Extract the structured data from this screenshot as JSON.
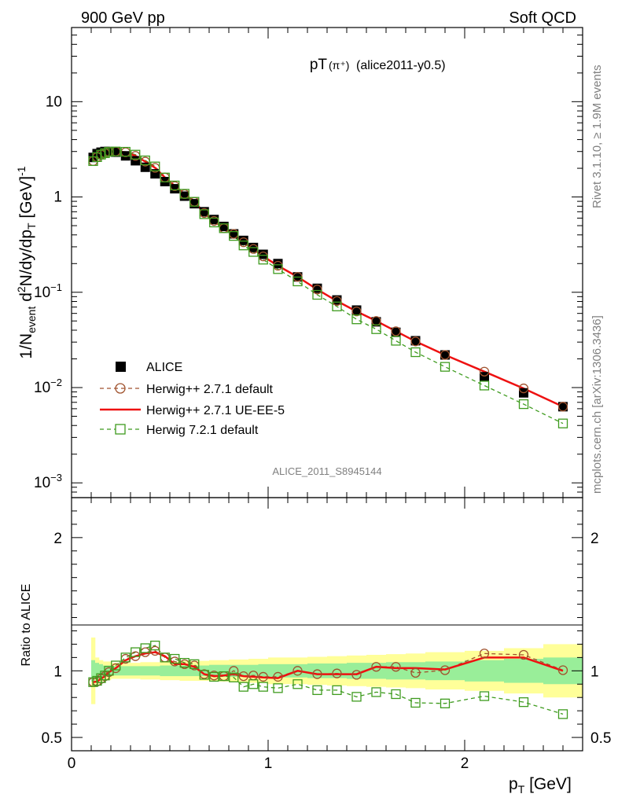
{
  "header": {
    "left": "900 GeV pp",
    "right": "Soft QCD",
    "side_top": "Rivet 3.1.10, ≥ 1.9M events",
    "side_bottom": "mcplots.cern.ch [arXiv:1306.3436]"
  },
  "chart_data": [
    {
      "type": "line",
      "title_main": "pT",
      "title_sub": "(π⁺)",
      "title_tail": "(alice2011-y0.5)",
      "watermark": "ALICE_2011_S8945144",
      "ylabel": "1/N_event d²N/dy/dp_T [GeV]⁻¹",
      "yscale": "log",
      "ylim": [
        0.0007,
        60
      ],
      "xlim": [
        0,
        2.6
      ],
      "ytick_labels": [
        {
          "v": 10,
          "b": "10",
          "e": ""
        },
        {
          "v": 1,
          "b": "1",
          "e": ""
        },
        {
          "v": 0.1,
          "b": "10",
          "e": "−1"
        },
        {
          "v": 0.01,
          "b": "10",
          "e": "−2"
        },
        {
          "v": 0.001,
          "b": "10",
          "e": "−3"
        }
      ],
      "legend": {
        "position": "lower-left",
        "entries": [
          "ALICE",
          "Herwig++ 2.7.1 default",
          "Herwig++ 2.7.1 UE-EE-5",
          "Herwig 7.2.1 default"
        ]
      },
      "x": [
        0.11,
        0.13,
        0.15,
        0.17,
        0.19,
        0.225,
        0.275,
        0.325,
        0.375,
        0.425,
        0.475,
        0.525,
        0.575,
        0.625,
        0.675,
        0.725,
        0.775,
        0.825,
        0.875,
        0.925,
        0.975,
        1.05,
        1.15,
        1.25,
        1.35,
        1.45,
        1.55,
        1.65,
        1.75,
        1.9,
        2.1,
        2.3,
        2.5
      ],
      "series": [
        {
          "name": "ALICE",
          "values": [
            2.6,
            2.85,
            2.95,
            3.0,
            3.0,
            2.95,
            2.7,
            2.4,
            2.05,
            1.75,
            1.45,
            1.22,
            1.02,
            0.85,
            0.7,
            0.58,
            0.49,
            0.41,
            0.35,
            0.295,
            0.25,
            0.2,
            0.145,
            0.11,
            0.083,
            0.065,
            0.049,
            0.038,
            0.031,
            0.022,
            0.013,
            0.0088,
            0.0063
          ]
        },
        {
          "name": "Herwig++ 2.7.1 default",
          "values": [
            2.38,
            2.62,
            2.78,
            2.88,
            2.98,
            3.0,
            2.95,
            2.7,
            2.35,
            2.02,
            1.6,
            1.3,
            1.07,
            0.89,
            0.68,
            0.56,
            0.47,
            0.41,
            0.335,
            0.285,
            0.238,
            0.19,
            0.145,
            0.107,
            0.081,
            0.063,
            0.05,
            0.039,
            0.0305,
            0.022,
            0.0147,
            0.0098,
            0.0063
          ]
        },
        {
          "name": "Herwig++ 2.7.1 UE-EE-5",
          "values": [
            2.38,
            2.62,
            2.78,
            2.88,
            2.98,
            3.0,
            2.95,
            2.7,
            2.35,
            2.02,
            1.6,
            1.3,
            1.07,
            0.89,
            0.68,
            0.56,
            0.47,
            0.41,
            0.335,
            0.285,
            0.238,
            0.19,
            0.145,
            0.107,
            0.081,
            0.063,
            0.05,
            0.039,
            0.0305,
            0.022,
            0.0147,
            0.0098,
            0.0063
          ]
        },
        {
          "name": "Herwig 7.2.1 default",
          "values": [
            2.38,
            2.62,
            2.78,
            2.88,
            2.98,
            3.0,
            2.98,
            2.78,
            2.42,
            2.09,
            1.6,
            1.32,
            1.08,
            0.89,
            0.66,
            0.54,
            0.47,
            0.39,
            0.31,
            0.265,
            0.22,
            0.175,
            0.13,
            0.094,
            0.071,
            0.052,
            0.041,
            0.031,
            0.0235,
            0.0165,
            0.0105,
            0.0067,
            0.0042
          ]
        }
      ]
    },
    {
      "type": "line",
      "ylabel": "Ratio to ALICE",
      "xlabel": "p_T [GeV]",
      "ylim": [
        0.4,
        2.3
      ],
      "xlim": [
        0,
        2.6
      ],
      "ytick_labels": [
        "2",
        "1",
        "0.5"
      ],
      "xtick_labels": [
        "0",
        "1",
        "2"
      ],
      "x": [
        0.11,
        0.13,
        0.15,
        0.17,
        0.19,
        0.225,
        0.275,
        0.325,
        0.375,
        0.425,
        0.475,
        0.525,
        0.575,
        0.625,
        0.675,
        0.725,
        0.775,
        0.825,
        0.875,
        0.925,
        0.975,
        1.05,
        1.15,
        1.25,
        1.35,
        1.45,
        1.55,
        1.65,
        1.75,
        1.9,
        2.1,
        2.3,
        2.5
      ],
      "band_x_edges": [
        0.1,
        0.12,
        0.14,
        0.16,
        0.18,
        0.2,
        0.25,
        0.3,
        0.35,
        0.4,
        0.45,
        0.5,
        0.55,
        0.6,
        0.65,
        0.7,
        0.75,
        0.8,
        0.85,
        0.9,
        0.95,
        1.0,
        1.1,
        1.2,
        1.3,
        1.4,
        1.5,
        1.6,
        1.7,
        1.8,
        2.0,
        2.2,
        2.4,
        2.6
      ],
      "band_stat_halfwidth": [
        0.08,
        0.06,
        0.05,
        0.04,
        0.04,
        0.035,
        0.035,
        0.035,
        0.035,
        0.035,
        0.04,
        0.04,
        0.04,
        0.04,
        0.04,
        0.045,
        0.045,
        0.045,
        0.045,
        0.045,
        0.05,
        0.05,
        0.05,
        0.055,
        0.055,
        0.06,
        0.06,
        0.065,
        0.065,
        0.07,
        0.08,
        0.09,
        0.1
      ],
      "band_total_halfwidth": [
        0.25,
        0.1,
        0.08,
        0.07,
        0.07,
        0.06,
        0.06,
        0.06,
        0.065,
        0.065,
        0.07,
        0.07,
        0.075,
        0.075,
        0.075,
        0.08,
        0.08,
        0.085,
        0.085,
        0.09,
        0.09,
        0.1,
        0.1,
        0.105,
        0.11,
        0.115,
        0.12,
        0.125,
        0.13,
        0.14,
        0.15,
        0.17,
        0.2
      ],
      "series": [
        {
          "name": "Herwig++ 2.7.1 default",
          "values": [
            0.915,
            0.92,
            0.94,
            0.96,
            0.99,
            1.02,
            1.09,
            1.11,
            1.14,
            1.15,
            1.1,
            1.07,
            1.05,
            1.04,
            0.975,
            0.965,
            0.96,
            1.0,
            0.96,
            0.965,
            0.955,
            0.955,
            1.0,
            0.975,
            0.98,
            0.97,
            1.03,
            1.03,
            0.985,
            1.005,
            1.13,
            1.12,
            1.005
          ]
        },
        {
          "name": "Herwig++ 2.7.1 UE-EE-5",
          "values": [
            0.915,
            0.92,
            0.94,
            0.96,
            0.99,
            1.02,
            1.08,
            1.11,
            1.13,
            1.14,
            1.11,
            1.05,
            1.05,
            1.03,
            0.975,
            0.96,
            0.965,
            0.975,
            0.96,
            0.955,
            0.95,
            0.945,
            1.0,
            0.975,
            0.975,
            0.975,
            1.03,
            1.02,
            1.02,
            1.01,
            1.1,
            1.1,
            1.0
          ]
        },
        {
          "name": "Herwig 7.2.1 default",
          "values": [
            0.915,
            0.925,
            0.945,
            0.965,
            1.0,
            1.04,
            1.1,
            1.14,
            1.17,
            1.19,
            1.1,
            1.09,
            1.06,
            1.05,
            0.97,
            0.955,
            0.96,
            0.95,
            0.88,
            0.9,
            0.88,
            0.87,
            0.9,
            0.855,
            0.855,
            0.805,
            0.84,
            0.825,
            0.76,
            0.755,
            0.81,
            0.765,
            0.675
          ]
        }
      ]
    }
  ],
  "colors": {
    "data": "#000000",
    "herwigpp_default": "#a0522d",
    "herwigpp_ueee5": "#ee1111",
    "herwig7": "#3e9b1e",
    "band_stat": "#99ee99",
    "band_total": "#ffff99"
  }
}
